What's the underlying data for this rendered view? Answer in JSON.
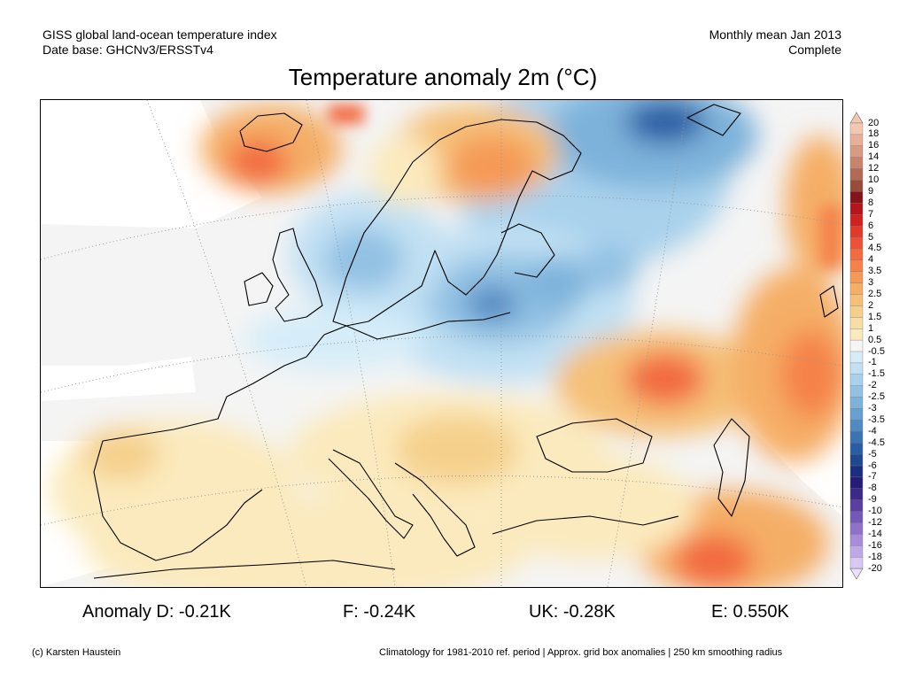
{
  "header": {
    "line1_left": "GISS global land-ocean temperature index",
    "line2_left": "Date base: GHCNv3/ERSSTv4",
    "line1_right": "Monthly mean Jan 2013",
    "line2_right": "Complete"
  },
  "title": "Temperature anomaly 2m (°C)",
  "legend": {
    "labels": [
      "20",
      "18",
      "16",
      "14",
      "12",
      "10",
      "9",
      "8",
      "7",
      "6",
      "5",
      "4.5",
      "4",
      "3.5",
      "3",
      "2.5",
      "2",
      "1.5",
      "1",
      "0.5",
      "-0.5",
      "-1",
      "-1.5",
      "-2",
      "-2.5",
      "-3",
      "-3.5",
      "-4",
      "-4.5",
      "-5",
      "-6",
      "-7",
      "-8",
      "-9",
      "-10",
      "-12",
      "-14",
      "-16",
      "-18",
      "-20"
    ],
    "colors": [
      "#f4c8b0",
      "#e8b09a",
      "#d89a82",
      "#c8836c",
      "#b06a55",
      "#984c3a",
      "#86131a",
      "#b4141e",
      "#d02020",
      "#e03a2a",
      "#ee5236",
      "#f26a40",
      "#f5824a",
      "#f59a56",
      "#f5ae66",
      "#f5c078",
      "#f5d08c",
      "#f8dea4",
      "#fbeabd",
      "#f5f5f5",
      "#d6edf9",
      "#c1e0f3",
      "#a9d1ec",
      "#92c1e3",
      "#7db2da",
      "#689fd0",
      "#5189c2",
      "#3b73b4",
      "#2a5ea4",
      "#1e4890",
      "#1b2f80",
      "#241c78",
      "#3c2a88",
      "#5a3ea0",
      "#7658b6",
      "#8f72c8",
      "#a88cd8",
      "#c0a8e6",
      "#d8c8f2",
      "#e8e0fa"
    ]
  },
  "stats": {
    "d": "Anomaly D: -0.21K",
    "f": "F: -0.24K",
    "uk": "UK: -0.28K",
    "e": "E: 0.550K"
  },
  "footer": {
    "left": "(c) Karsten Haustein",
    "right": "Climatology for 1981-2010 ref. period | Approx. grid box anomalies | 250 km smoothing radius"
  }
}
